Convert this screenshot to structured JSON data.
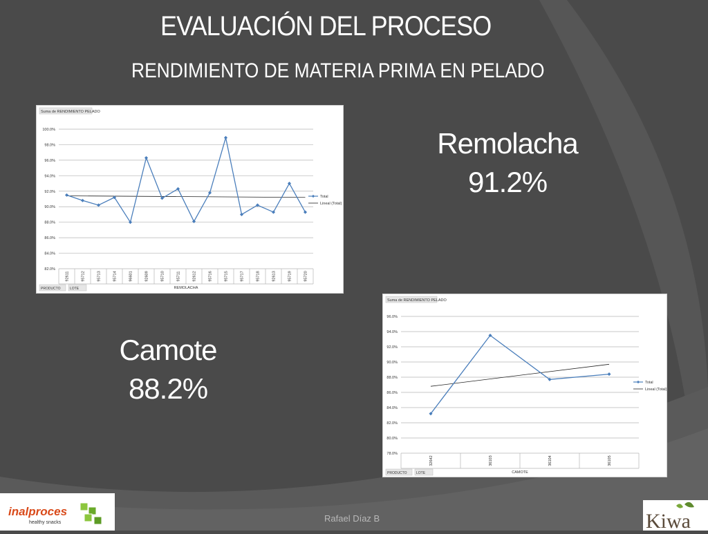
{
  "slide": {
    "title": "EVALUACIÓN DEL PROCESO",
    "subtitle": "RENDIMIENTO DE MATERIA PRIMA EN PELADO",
    "results": [
      {
        "name": "Remolacha",
        "value": "91.2%"
      },
      {
        "name": "Camote",
        "value": "88.2%"
      }
    ],
    "footer": {
      "author": "Rafael Díaz B",
      "logo_left": {
        "brand": "inalproces",
        "tagline": "healthy snacks"
      },
      "logo_right": {
        "brand": "Kiwa"
      }
    },
    "colors": {
      "background": "#4a4a4a",
      "series_line": "#4a7ebb",
      "trend_line": "#000000"
    }
  },
  "chart_data": [
    {
      "type": "line",
      "title": "Suma de RENDIMIENTO PELADO",
      "xlabel": "REMOLACHA",
      "ylabel": "",
      "ylim": [
        82,
        100
      ],
      "y_ticks": [
        "82.0%",
        "84.0%",
        "86.0%",
        "88.0%",
        "90.0%",
        "92.0%",
        "94.0%",
        "96.0%",
        "98.0%",
        "100.0%"
      ],
      "categories": [
        "92611",
        "95712",
        "95713",
        "95714",
        "96601",
        "92609",
        "95710",
        "95711",
        "92612",
        "95716",
        "95715",
        "95717",
        "95718",
        "92613",
        "95719",
        "95720"
      ],
      "series": [
        {
          "name": "Total",
          "values": [
            91.5,
            90.8,
            90.2,
            91.2,
            88.0,
            96.3,
            91.1,
            92.3,
            88.1,
            91.8,
            98.9,
            89.0,
            90.2,
            89.3,
            93.0,
            89.3
          ]
        }
      ],
      "trend": {
        "name": "Lineal (Total)",
        "start": 91.4,
        "end": 91.2
      },
      "legend_position": "right",
      "grid": true,
      "filter_buttons": [
        "PRODUCTO",
        "LOTE"
      ]
    },
    {
      "type": "line",
      "title": "Suma de RENDIMIENTO PELADO",
      "xlabel": "CAMOTE",
      "ylabel": "",
      "ylim": [
        78,
        96
      ],
      "y_ticks": [
        "78.0%",
        "80.0%",
        "82.0%",
        "84.0%",
        "86.0%",
        "88.0%",
        "90.0%",
        "92.0%",
        "94.0%",
        "96.0%"
      ],
      "categories": [
        "32642",
        "36103",
        "36104",
        "36105"
      ],
      "series": [
        {
          "name": "Total",
          "values": [
            83.2,
            93.5,
            87.7,
            88.4
          ]
        }
      ],
      "trend": {
        "name": "Lineal (Total)",
        "start": 86.8,
        "end": 89.7
      },
      "legend_position": "right",
      "grid": true,
      "filter_buttons": [
        "PRODUCTO",
        "LOTE"
      ]
    }
  ]
}
